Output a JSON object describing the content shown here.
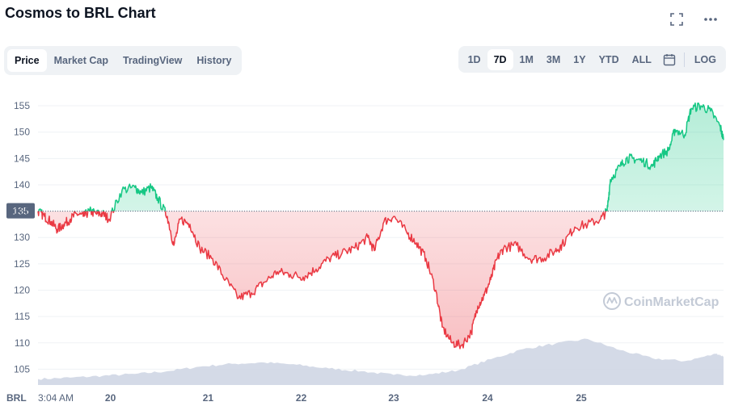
{
  "header": {
    "title": "Cosmos to BRL Chart"
  },
  "tabs": [
    {
      "label": "Price",
      "active": true
    },
    {
      "label": "Market Cap",
      "active": false
    },
    {
      "label": "TradingView",
      "active": false
    },
    {
      "label": "History",
      "active": false
    }
  ],
  "ranges": [
    {
      "label": "1D",
      "active": false
    },
    {
      "label": "7D",
      "active": true
    },
    {
      "label": "1M",
      "active": false
    },
    {
      "label": "3M",
      "active": false
    },
    {
      "label": "1Y",
      "active": false
    },
    {
      "label": "YTD",
      "active": false
    },
    {
      "label": "ALL",
      "active": false
    }
  ],
  "log_label": "LOG",
  "icons": {
    "fullscreen": "fullscreen-icon",
    "more": "more-icon",
    "calendar": "calendar-icon"
  },
  "watermark": "CoinMarketCap",
  "colors": {
    "up": "#16c784",
    "down": "#ea3943",
    "volume": "#cfd6e4",
    "reference": "#58667e"
  },
  "chart_data": {
    "type": "line",
    "currency_label": "BRL",
    "start_label": "3:04 AM",
    "y_ticks": [
      105,
      110,
      115,
      120,
      125,
      130,
      135,
      140,
      145,
      150,
      155
    ],
    "ylim": [
      102,
      157
    ],
    "reference_value": 135,
    "reference_label": "135",
    "x_ticks": [
      {
        "label": "20",
        "t": 0.112
      },
      {
        "label": "21",
        "t": 0.263
      },
      {
        "label": "22",
        "t": 0.407
      },
      {
        "label": "23",
        "t": 0.55
      },
      {
        "label": "24",
        "t": 0.695
      },
      {
        "label": "25",
        "t": 0.84
      }
    ],
    "price_points": [
      [
        0.0,
        135
      ],
      [
        0.01,
        134
      ],
      [
        0.02,
        133
      ],
      [
        0.03,
        131.5
      ],
      [
        0.04,
        132.5
      ],
      [
        0.05,
        133.5
      ],
      [
        0.06,
        134.5
      ],
      [
        0.07,
        134
      ],
      [
        0.08,
        135
      ],
      [
        0.09,
        134.5
      ],
      [
        0.1,
        134.5
      ],
      [
        0.11,
        133.5
      ],
      [
        0.13,
        139
      ],
      [
        0.15,
        139.5
      ],
      [
        0.16,
        138.5
      ],
      [
        0.175,
        139.5
      ],
      [
        0.185,
        137.5
      ],
      [
        0.2,
        134
      ],
      [
        0.21,
        128.5
      ],
      [
        0.22,
        133.5
      ],
      [
        0.235,
        132.5
      ],
      [
        0.25,
        128
      ],
      [
        0.27,
        126
      ],
      [
        0.29,
        122
      ],
      [
        0.31,
        118.5
      ],
      [
        0.33,
        119.5
      ],
      [
        0.35,
        121.5
      ],
      [
        0.37,
        123.5
      ],
      [
        0.39,
        123
      ],
      [
        0.41,
        122.5
      ],
      [
        0.43,
        124
      ],
      [
        0.45,
        126
      ],
      [
        0.47,
        127
      ],
      [
        0.49,
        128
      ],
      [
        0.51,
        130
      ],
      [
        0.52,
        127.5
      ],
      [
        0.535,
        133
      ],
      [
        0.55,
        134
      ],
      [
        0.57,
        131
      ],
      [
        0.585,
        129
      ],
      [
        0.6,
        126
      ],
      [
        0.615,
        120
      ],
      [
        0.625,
        113
      ],
      [
        0.64,
        110
      ],
      [
        0.655,
        109.5
      ],
      [
        0.67,
        112
      ],
      [
        0.68,
        117
      ],
      [
        0.69,
        119
      ],
      [
        0.7,
        122
      ],
      [
        0.71,
        126
      ],
      [
        0.72,
        128
      ],
      [
        0.74,
        128.5
      ],
      [
        0.76,
        126
      ],
      [
        0.78,
        126
      ],
      [
        0.8,
        127.5
      ],
      [
        0.81,
        128.5
      ],
      [
        0.83,
        132
      ],
      [
        0.85,
        132.5
      ],
      [
        0.87,
        133.5
      ],
      [
        0.88,
        135
      ],
      [
        0.885,
        141
      ],
      [
        0.9,
        143.5
      ],
      [
        0.91,
        145
      ],
      [
        0.92,
        145
      ],
      [
        0.935,
        144.5
      ],
      [
        0.95,
        143.5
      ],
      [
        0.96,
        145.5
      ],
      [
        0.975,
        146.5
      ],
      [
        0.985,
        150.5
      ],
      [
        1.0,
        149.5
      ],
      [
        1.01,
        154.5
      ],
      [
        1.025,
        155
      ],
      [
        1.04,
        154
      ],
      [
        1.055,
        151
      ],
      [
        1.06,
        148.5
      ]
    ],
    "volume_points": [
      [
        0.0,
        0.13
      ],
      [
        0.05,
        0.16
      ],
      [
        0.1,
        0.2
      ],
      [
        0.15,
        0.24
      ],
      [
        0.2,
        0.3
      ],
      [
        0.25,
        0.4
      ],
      [
        0.3,
        0.46
      ],
      [
        0.35,
        0.49
      ],
      [
        0.4,
        0.44
      ],
      [
        0.45,
        0.36
      ],
      [
        0.5,
        0.3
      ],
      [
        0.55,
        0.22
      ],
      [
        0.6,
        0.22
      ],
      [
        0.65,
        0.32
      ],
      [
        0.7,
        0.56
      ],
      [
        0.75,
        0.78
      ],
      [
        0.8,
        0.9
      ],
      [
        0.85,
        1.0
      ],
      [
        0.9,
        0.76
      ],
      [
        0.95,
        0.58
      ],
      [
        1.0,
        0.52
      ],
      [
        1.05,
        0.68
      ],
      [
        1.06,
        0.62
      ]
    ]
  }
}
